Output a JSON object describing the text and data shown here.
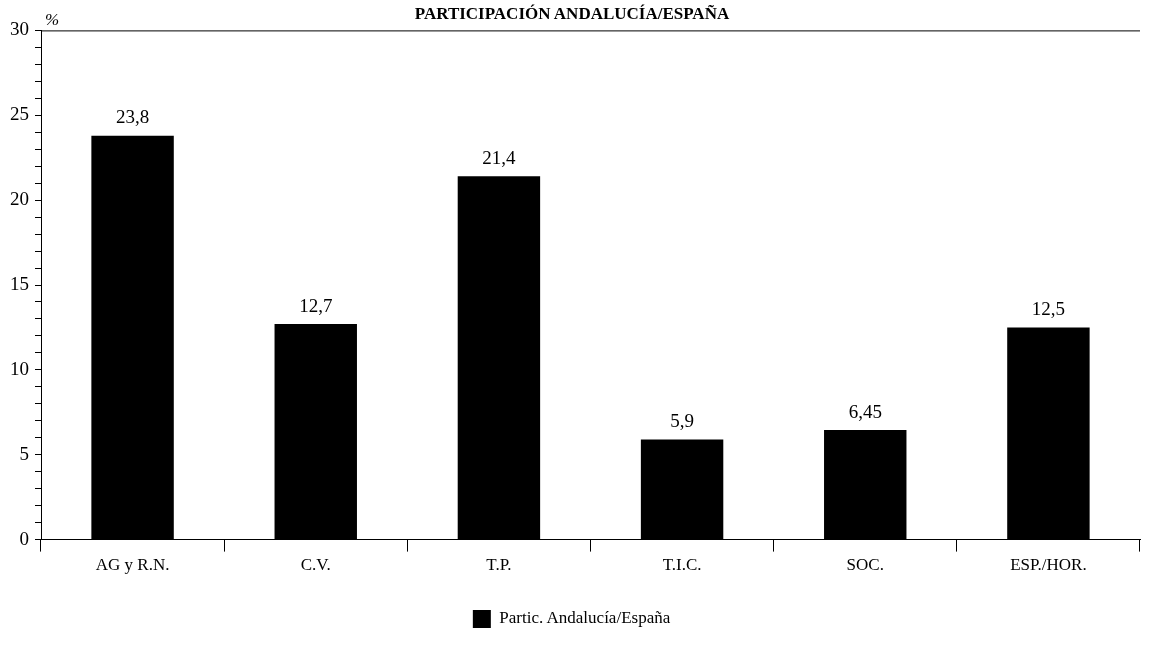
{
  "chart_data": {
    "type": "bar",
    "title": "PARTICIPACIÓN ANDALUCÍA/ESPAÑA",
    "ylabel": "%",
    "categories": [
      "AG y R.N.",
      "C.V.",
      "T.P.",
      "T.I.C.",
      "SOC.",
      "ESP./HOR."
    ],
    "series": [
      {
        "name": "Partic. Andalucía/España",
        "color": "#000000",
        "values": [
          23.8,
          12.7,
          21.4,
          5.9,
          6.45,
          12.5
        ],
        "value_labels": [
          "23,8",
          "12,7",
          "21,4",
          "5,9",
          "6,45",
          "12,5"
        ]
      }
    ],
    "ylim": [
      0,
      30
    ],
    "yticks": [
      0,
      {
        "value": 1,
        "label": null
      },
      {
        "value": 2,
        "label": null
      },
      {
        "value": 3,
        "label": null
      },
      {
        "value": 4,
        "label": null
      },
      5,
      {
        "value": 6,
        "label": null
      },
      {
        "value": 7,
        "label": null
      },
      {
        "value": 8,
        "label": null
      },
      {
        "value": 9,
        "label": null
      },
      10,
      {
        "value": 11,
        "label": null
      },
      {
        "value": 12,
        "label": null
      },
      {
        "value": 13,
        "label": null
      },
      {
        "value": 14,
        "label": null
      },
      15,
      {
        "value": 16,
        "label": null
      },
      {
        "value": 17,
        "label": null
      },
      {
        "value": 18,
        "label": null
      },
      {
        "value": 19,
        "label": null
      },
      20,
      {
        "value": 21,
        "label": null
      },
      {
        "value": 22,
        "label": null
      },
      {
        "value": 23,
        "label": null
      },
      {
        "value": 24,
        "label": null
      },
      25,
      {
        "value": 26,
        "label": null
      },
      {
        "value": 27,
        "label": null
      },
      {
        "value": 28,
        "label": null
      },
      {
        "value": 29,
        "label": null
      },
      30
    ],
    "grid": false,
    "legend": "bottom"
  }
}
